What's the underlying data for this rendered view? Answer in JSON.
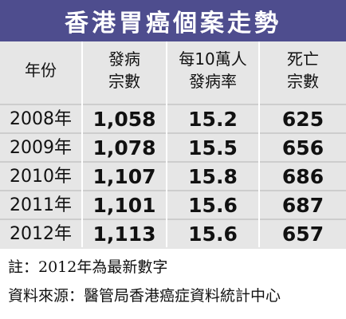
{
  "chart_data": {
    "type": "table",
    "title": "香港胃癌個案走勢",
    "columns": [
      [
        "年份"
      ],
      [
        "發病",
        "宗數"
      ],
      [
        "每10萬人",
        "發病率"
      ],
      [
        "死亡",
        "宗數"
      ]
    ],
    "rows": [
      {
        "year": "2008年",
        "cases": "1,058",
        "rate": "15.2",
        "deaths": "625"
      },
      {
        "year": "2009年",
        "cases": "1,078",
        "rate": "15.5",
        "deaths": "656"
      },
      {
        "year": "2010年",
        "cases": "1,107",
        "rate": "15.8",
        "deaths": "686"
      },
      {
        "year": "2011年",
        "cases": "1,101",
        "rate": "15.6",
        "deaths": "687"
      },
      {
        "year": "2012年",
        "cases": "1,113",
        "rate": "15.6",
        "deaths": "657"
      }
    ]
  },
  "notes": {
    "note": "註：2012年為最新數字",
    "source": "資料來源：醫管局香港癌症資料統計中心"
  },
  "colors": {
    "title_bg": "#4e4d8e",
    "title_text": "#ffffff",
    "table_bg": "#e6e6e6",
    "row_line": "#cdcdcd"
  }
}
